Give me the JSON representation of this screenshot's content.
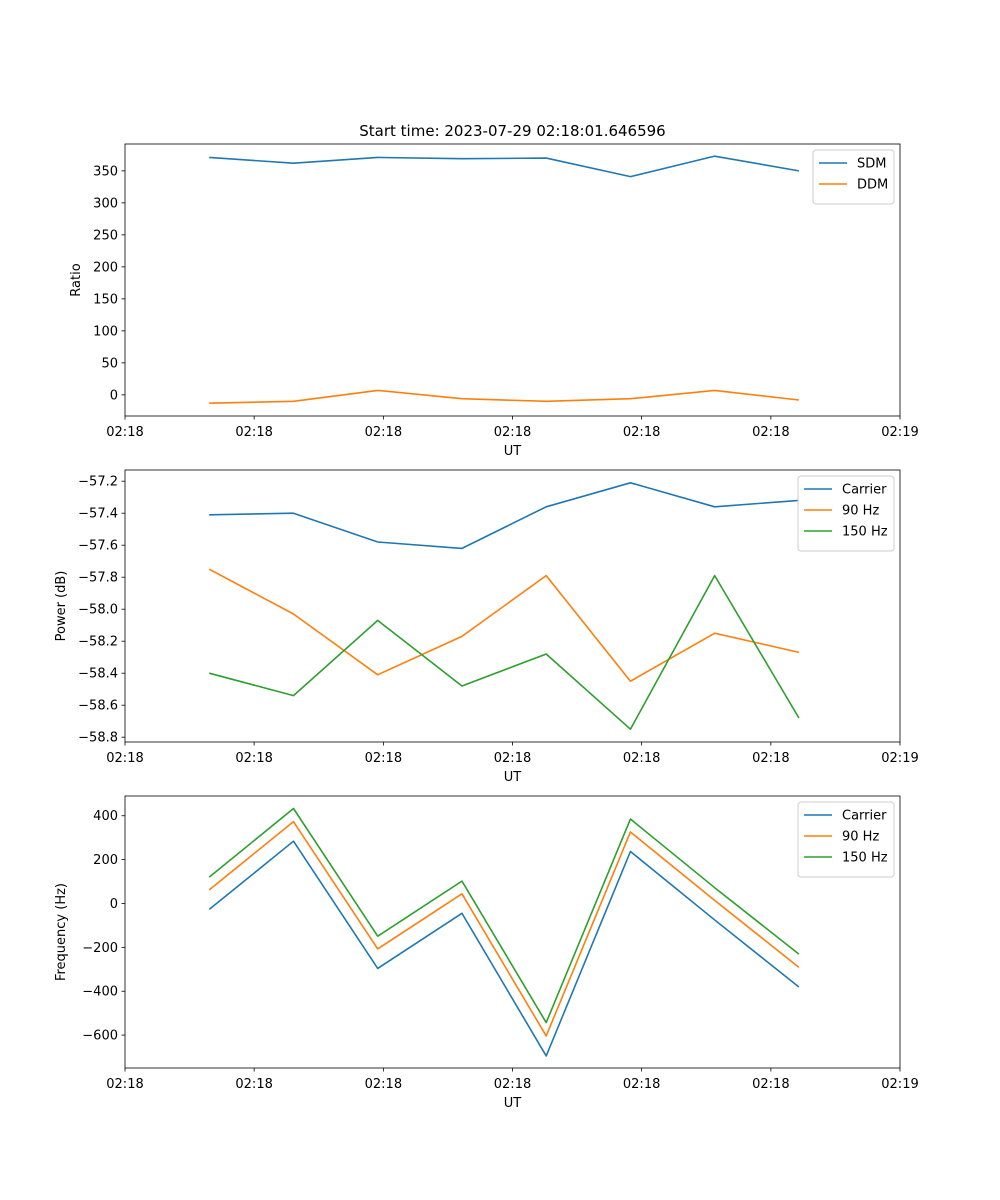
{
  "figure_title": "Start time: 2023-07-29 02:18:01.646596",
  "colors": {
    "blue": "#1f77b4",
    "orange": "#ff7f0e",
    "green": "#2ca02c"
  },
  "chart_data": [
    {
      "type": "line",
      "title": "Start time: 2023-07-29 02:18:01.646596",
      "xlabel": "UT",
      "ylabel": "Ratio",
      "x_sample_index": [
        1,
        2,
        3,
        4,
        5,
        6,
        7,
        8
      ],
      "xlim": [
        0,
        9.2
      ],
      "xtick_positions": [
        0,
        1.533,
        3.067,
        4.6,
        6.133,
        7.667,
        9.2
      ],
      "xtick_labels": [
        "02:18",
        "02:18",
        "02:18",
        "02:18",
        "02:18",
        "02:18",
        "02:19"
      ],
      "ylim": [
        -33,
        392
      ],
      "yticks": [
        0,
        50,
        100,
        150,
        200,
        250,
        300,
        350
      ],
      "legend_location": "upper right",
      "series": [
        {
          "name": "SDM",
          "color": "#1f77b4",
          "values": [
            371,
            362,
            371,
            369,
            370,
            341,
            373,
            350
          ]
        },
        {
          "name": "DDM",
          "color": "#ff7f0e",
          "values": [
            -13,
            -10,
            7,
            -6,
            -10,
            -6,
            7,
            -8
          ]
        }
      ]
    },
    {
      "type": "line",
      "xlabel": "UT",
      "ylabel": "Power (dB)",
      "x_sample_index": [
        1,
        2,
        3,
        4,
        5,
        6,
        7,
        8
      ],
      "xlim": [
        0,
        9.2
      ],
      "xtick_positions": [
        0,
        1.533,
        3.067,
        4.6,
        6.133,
        7.667,
        9.2
      ],
      "xtick_labels": [
        "02:18",
        "02:18",
        "02:18",
        "02:18",
        "02:18",
        "02:18",
        "02:19"
      ],
      "ylim": [
        -58.83,
        -57.13
      ],
      "yticks": [
        -58.8,
        -58.6,
        -58.4,
        -58.2,
        -58.0,
        -57.8,
        -57.6,
        -57.4,
        -57.2
      ],
      "ytick_labels": [
        "−58.8",
        "−58.6",
        "−58.4",
        "−58.2",
        "−58.0",
        "−57.8",
        "−57.6",
        "−57.4",
        "−57.2"
      ],
      "legend_location": "upper right",
      "series": [
        {
          "name": "Carrier",
          "color": "#1f77b4",
          "values": [
            -57.41,
            -57.4,
            -57.58,
            -57.62,
            -57.36,
            -57.21,
            -57.36,
            -57.32
          ]
        },
        {
          "name": "90 Hz",
          "color": "#ff7f0e",
          "values": [
            -57.75,
            -58.03,
            -58.41,
            -58.17,
            -57.79,
            -58.45,
            -58.15,
            -58.27
          ]
        },
        {
          "name": "150 Hz",
          "color": "#2ca02c",
          "values": [
            -58.4,
            -58.54,
            -58.07,
            -58.48,
            -58.28,
            -58.75,
            -57.79,
            -58.68
          ]
        }
      ]
    },
    {
      "type": "line",
      "xlabel": "UT",
      "ylabel": "Frequency (Hz)",
      "x_sample_index": [
        1,
        2,
        3,
        4,
        5,
        6,
        7,
        8
      ],
      "xlim": [
        0,
        9.2
      ],
      "xtick_positions": [
        0,
        1.533,
        3.067,
        4.6,
        6.133,
        7.667,
        9.2
      ],
      "xtick_labels": [
        "02:18",
        "02:18",
        "02:18",
        "02:18",
        "02:18",
        "02:18",
        "02:19"
      ],
      "ylim": [
        -750,
        490
      ],
      "yticks": [
        -600,
        -400,
        -200,
        0,
        200,
        400
      ],
      "ytick_labels": [
        "−600",
        "−400",
        "−200",
        "0",
        "200",
        "400"
      ],
      "legend_location": "upper right",
      "series": [
        {
          "name": "Carrier",
          "color": "#1f77b4",
          "values": [
            -27,
            284,
            -296,
            -45,
            -695,
            237,
            -75,
            -381
          ]
        },
        {
          "name": "90 Hz",
          "color": "#ff7f0e",
          "values": [
            62,
            373,
            -207,
            44,
            -604,
            326,
            14,
            -291
          ]
        },
        {
          "name": "150 Hz",
          "color": "#2ca02c",
          "values": [
            120,
            433,
            -149,
            102,
            -543,
            385,
            72,
            -231
          ]
        }
      ]
    }
  ]
}
